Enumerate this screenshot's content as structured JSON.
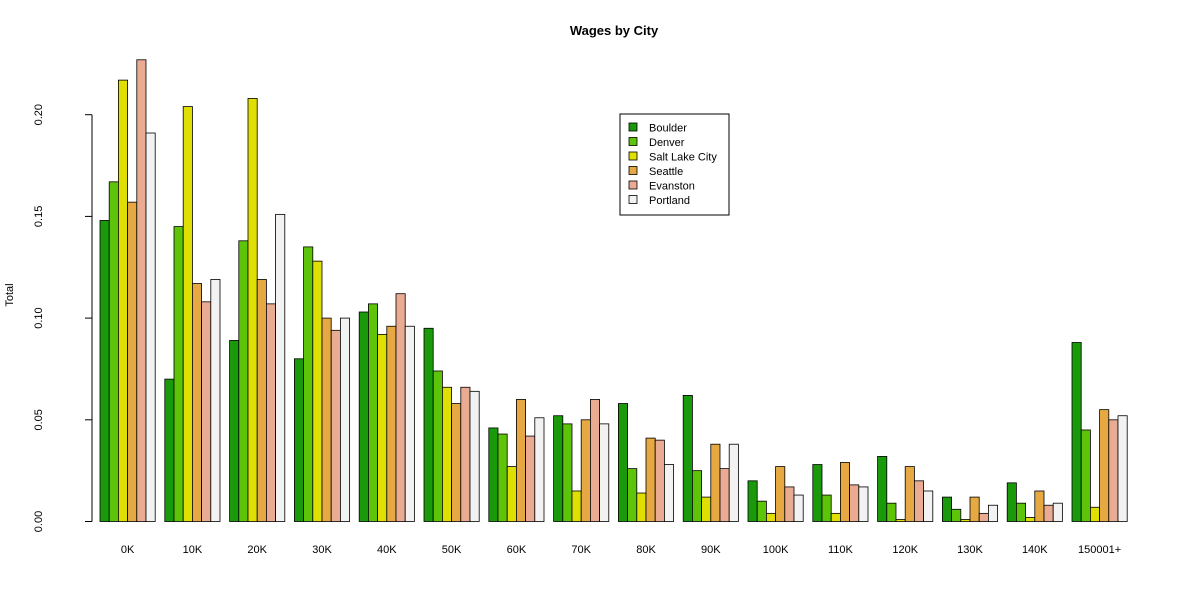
{
  "chart_data": {
    "type": "bar",
    "title": "Wages by City",
    "xlabel": "",
    "ylabel": "Total",
    "ylim": [
      0,
      0.23
    ],
    "yticks": [
      "0.00",
      "0.05",
      "0.10",
      "0.15",
      "0.20"
    ],
    "grid": false,
    "legend_position": "top-center",
    "categories": [
      "0K",
      "10K",
      "20K",
      "30K",
      "40K",
      "50K",
      "60K",
      "70K",
      "80K",
      "90K",
      "100K",
      "110K",
      "120K",
      "130K",
      "140K",
      "150001+"
    ],
    "series": [
      {
        "name": "Boulder",
        "color": "#1a9a0b",
        "values": [
          0.148,
          0.07,
          0.089,
          0.08,
          0.103,
          0.095,
          0.046,
          0.052,
          0.058,
          0.062,
          0.02,
          0.028,
          0.032,
          0.012,
          0.019,
          0.088
        ]
      },
      {
        "name": "Denver",
        "color": "#5ec40a",
        "values": [
          0.167,
          0.145,
          0.138,
          0.135,
          0.107,
          0.074,
          0.043,
          0.048,
          0.026,
          0.025,
          0.01,
          0.013,
          0.009,
          0.006,
          0.009,
          0.045
        ]
      },
      {
        "name": "Salt Lake City",
        "color": "#e0df03",
        "values": [
          0.217,
          0.204,
          0.208,
          0.128,
          0.092,
          0.066,
          0.027,
          0.015,
          0.014,
          0.012,
          0.004,
          0.004,
          0.001,
          0.001,
          0.002,
          0.007
        ]
      },
      {
        "name": "Seattle",
        "color": "#e5a843",
        "values": [
          0.157,
          0.117,
          0.119,
          0.1,
          0.096,
          0.058,
          0.06,
          0.05,
          0.041,
          0.038,
          0.027,
          0.029,
          0.027,
          0.012,
          0.015,
          0.055
        ]
      },
      {
        "name": "Evanston",
        "color": "#eaab93",
        "values": [
          0.227,
          0.108,
          0.107,
          0.094,
          0.112,
          0.066,
          0.042,
          0.06,
          0.04,
          0.026,
          0.017,
          0.018,
          0.02,
          0.004,
          0.008,
          0.05
        ]
      },
      {
        "name": "Portland",
        "color": "#f2f2f2",
        "values": [
          0.191,
          0.119,
          0.151,
          0.1,
          0.096,
          0.064,
          0.051,
          0.048,
          0.028,
          0.038,
          0.013,
          0.017,
          0.015,
          0.008,
          0.009,
          0.052
        ]
      }
    ]
  }
}
